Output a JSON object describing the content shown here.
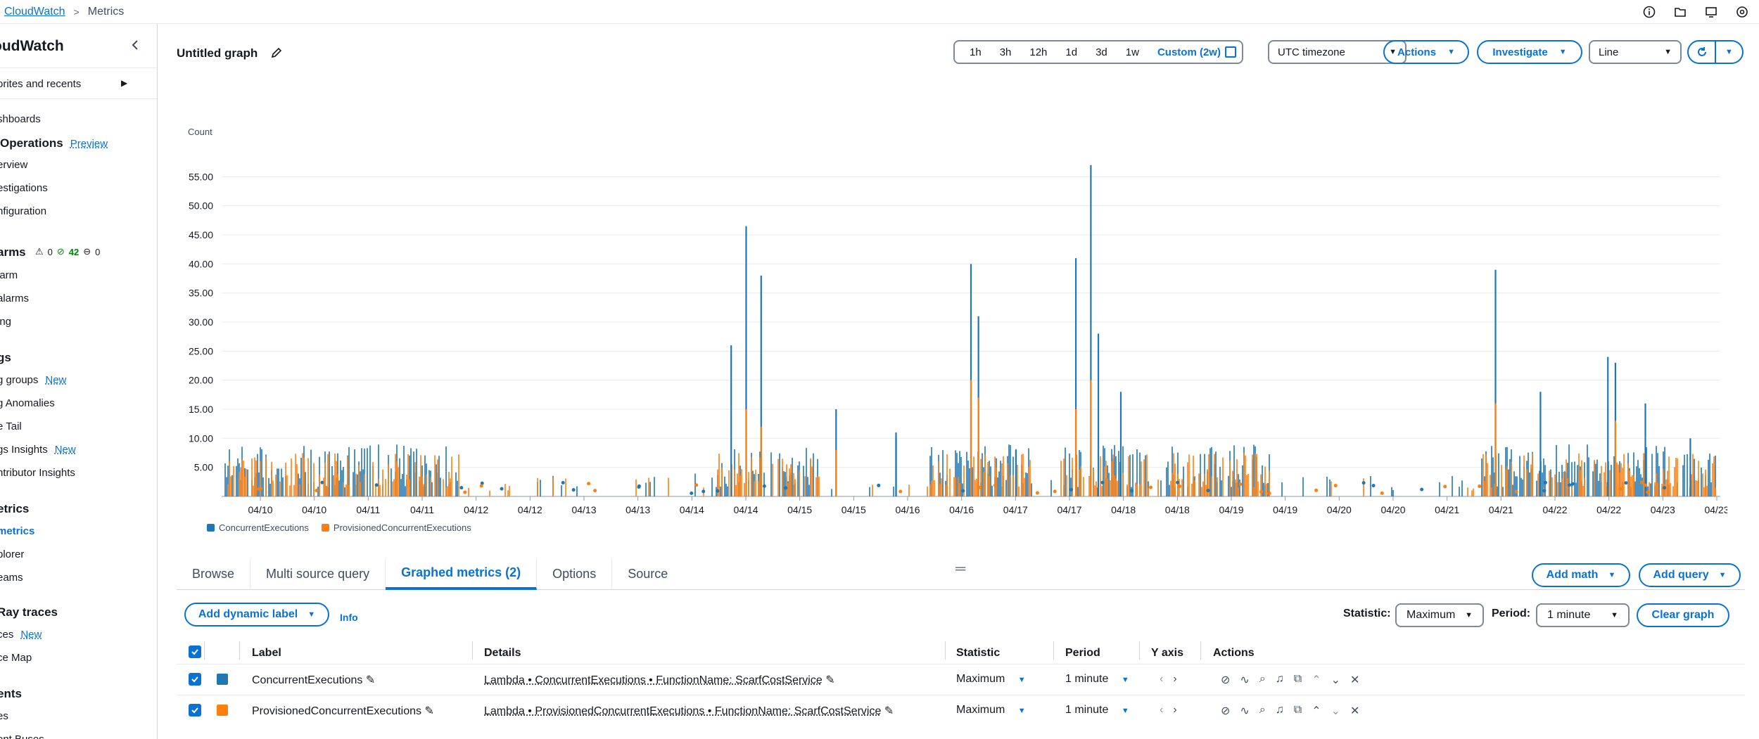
{
  "breadcrumb": {
    "service": "CloudWatch",
    "current": "Metrics"
  },
  "sidebar": {
    "title": "oudWatch",
    "favorites": "orites and recents",
    "items": [
      {
        "text": "shboards",
        "y": 0
      },
      {
        "text": "Operations",
        "head": true,
        "badge": "Preview"
      },
      {
        "text": "erview"
      },
      {
        "text": "estigations"
      },
      {
        "text": "nfiguration"
      }
    ],
    "alarms": {
      "head": "arms",
      "warn": "0",
      "ok": "42",
      "insufficient": "0",
      "items": [
        "larm",
        "alarms",
        "ing"
      ]
    },
    "logs": {
      "head": "gs",
      "items": [
        "g groups",
        "g Anomalies",
        "e Tail",
        "gs Insights",
        "ntributor Insights"
      ],
      "new_badge": "New"
    },
    "metrics": {
      "head": "etrics",
      "items": [
        "metrics",
        "plorer",
        "eams"
      ]
    },
    "xray": {
      "head": "Ray traces",
      "items": [
        "ces",
        "ce Map"
      ],
      "new_badge": "New"
    },
    "events": {
      "head": "ents",
      "items": [
        "es",
        "ent Buses"
      ]
    }
  },
  "header": {
    "title": "Untitled graph",
    "ranges": [
      "1h",
      "3h",
      "12h",
      "1d",
      "3d",
      "1w"
    ],
    "custom_range": "Custom (2w)",
    "timezone": "UTC timezone",
    "actions": "Actions",
    "investigate": "Investigate",
    "chart_type": "Line"
  },
  "chart_data": {
    "type": "line",
    "ylabel": "Count",
    "yticks": [
      "55.00",
      "50.00",
      "45.00",
      "40.00",
      "35.00",
      "30.00",
      "25.00",
      "20.00",
      "15.00",
      "10.00",
      "5.00"
    ],
    "ylim": [
      0,
      60
    ],
    "xticks": [
      "04/10",
      "04/10",
      "04/11",
      "04/11",
      "04/12",
      "04/12",
      "04/13",
      "04/13",
      "04/14",
      "04/14",
      "04/15",
      "04/15",
      "04/16",
      "04/16",
      "04/17",
      "04/17",
      "04/18",
      "04/18",
      "04/19",
      "04/19",
      "04/20",
      "04/20",
      "04/21",
      "04/21",
      "04/22",
      "04/22",
      "04/23",
      "04/23"
    ],
    "series": [
      {
        "name": "ConcurrentExecutions",
        "color": "#1f77b4",
        "spikes": [
          [
            0.35,
            46.5
          ],
          [
            0.36,
            38
          ],
          [
            0.34,
            26
          ],
          [
            0.5,
            40
          ],
          [
            0.505,
            31
          ],
          [
            0.57,
            41
          ],
          [
            0.58,
            57
          ],
          [
            0.585,
            28
          ],
          [
            0.6,
            18
          ],
          [
            0.85,
            39
          ],
          [
            0.88,
            18
          ],
          [
            0.93,
            23
          ],
          [
            0.925,
            24
          ],
          [
            0.95,
            16
          ],
          [
            0.98,
            10
          ],
          [
            0.41,
            15
          ],
          [
            0.45,
            10
          ],
          [
            0.53,
            8
          ],
          [
            0.45,
            11
          ]
        ]
      },
      {
        "name": "ProvisionedConcurrentExecutions",
        "color": "#ff7f0e",
        "spikes": [
          [
            0.35,
            15
          ],
          [
            0.36,
            12
          ],
          [
            0.5,
            20
          ],
          [
            0.505,
            17
          ],
          [
            0.57,
            15
          ],
          [
            0.58,
            20
          ],
          [
            0.85,
            16
          ],
          [
            0.93,
            13
          ],
          [
            0.41,
            8
          ]
        ]
      }
    ]
  },
  "tabs": [
    "Browse",
    "Multi source query",
    "Graphed metrics (2)",
    "Options",
    "Source"
  ],
  "active_tab": "Graphed metrics (2)",
  "buttons": {
    "add_math": "Add math",
    "add_query": "Add query",
    "add_dynamic_label": "Add dynamic label",
    "info": "Info",
    "clear_graph": "Clear graph"
  },
  "statistic": {
    "label": "Statistic:",
    "value": "Maximum"
  },
  "period": {
    "label": "Period:",
    "value": "1 minute"
  },
  "table": {
    "columns": [
      "Label",
      "Details",
      "Statistic",
      "Period",
      "Y axis",
      "Actions"
    ],
    "rows": [
      {
        "label": "ConcurrentExecutions",
        "details": "Lambda • ConcurrentExecutions • FunctionName: ScarfCostService",
        "statistic": "Maximum",
        "period": "1 minute",
        "color": "#1f77b4"
      },
      {
        "label": "ProvisionedConcurrentExecutions",
        "details": "Lambda • ProvisionedConcurrentExecutions • FunctionName: ScarfCostService",
        "statistic": "Maximum",
        "period": "1 minute",
        "color": "#ff7f0e"
      }
    ]
  }
}
